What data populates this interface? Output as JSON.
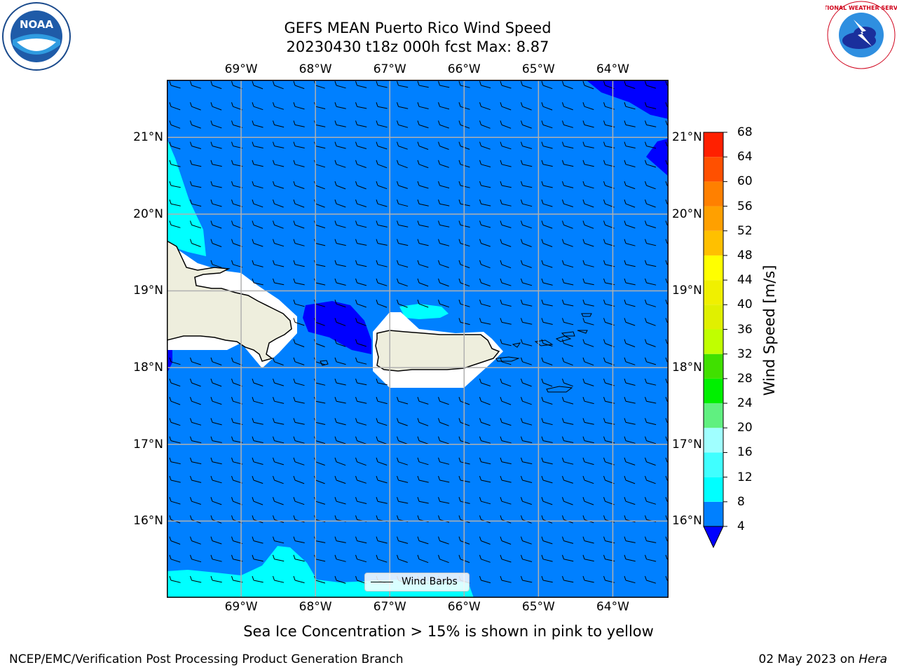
{
  "title": {
    "line1": "GEFS MEAN Puerto Rico Wind Speed",
    "line2": "20230430 t18z 000h fcst   Max: 8.87"
  },
  "logos": {
    "left": "NOAA",
    "right": "NATIONAL WEATHER SERVICE"
  },
  "map": {
    "lon_labels": [
      "69°W",
      "68°W",
      "67°W",
      "66°W",
      "65°W",
      "64°W"
    ],
    "lat_labels": [
      "21°N",
      "20°N",
      "19°N",
      "18°N",
      "17°N",
      "16°N"
    ],
    "lon_range": [
      -70.0,
      -63.25
    ],
    "lat_range": [
      15.0,
      21.75
    ],
    "gridlines": true,
    "ocean_color": "#0080ff",
    "land_color": "#eeeedd",
    "mask_color": "#ffffff",
    "legend_label": "Wind Barbs"
  },
  "colorbar": {
    "label": "Wind Speed [m/s]",
    "ticks": [
      "4",
      "8",
      "12",
      "16",
      "20",
      "24",
      "28",
      "32",
      "36",
      "40",
      "44",
      "48",
      "52",
      "56",
      "60",
      "64",
      "68"
    ],
    "bins": [
      {
        "from": 4,
        "to": 8,
        "color": "#0080ff"
      },
      {
        "from": 8,
        "to": 12,
        "color": "#00ffff"
      },
      {
        "from": 12,
        "to": 16,
        "color": "#40ffff"
      },
      {
        "from": 16,
        "to": 20,
        "color": "#a0ffff"
      },
      {
        "from": 20,
        "to": 24,
        "color": "#60f080"
      },
      {
        "from": 24,
        "to": 28,
        "color": "#00f000"
      },
      {
        "from": 28,
        "to": 32,
        "color": "#40e000"
      },
      {
        "from": 32,
        "to": 36,
        "color": "#c0ff00"
      },
      {
        "from": 36,
        "to": 40,
        "color": "#e0f000"
      },
      {
        "from": 40,
        "to": 44,
        "color": "#f0f000"
      },
      {
        "from": 44,
        "to": 48,
        "color": "#ffff00"
      },
      {
        "from": 48,
        "to": 52,
        "color": "#ffc000"
      },
      {
        "from": 52,
        "to": 56,
        "color": "#ffa000"
      },
      {
        "from": 56,
        "to": 60,
        "color": "#ff8000"
      },
      {
        "from": 60,
        "to": 64,
        "color": "#ff5000"
      },
      {
        "from": 64,
        "to": 68,
        "color": "#ff2000"
      }
    ],
    "under_color": "#0000ff"
  },
  "subtitle": "Sea Ice Concentration > 15% is shown in pink to yellow",
  "footer": {
    "credit": "NCEP/EMC/Verification Post Processing Product Generation Branch",
    "date": "02 May 2023 on ",
    "host": "Hera"
  }
}
